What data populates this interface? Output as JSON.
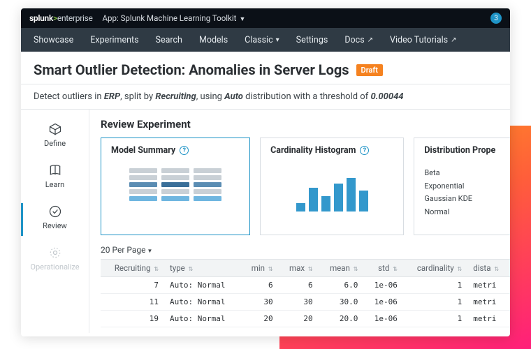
{
  "branding": {
    "prefix": "splunk",
    "sep": ">",
    "suffix": "enterprise"
  },
  "app": {
    "label": "App: Splunk Machine Learning Toolkit"
  },
  "notification_count": "3",
  "nav": [
    {
      "label": "Showcase"
    },
    {
      "label": "Experiments"
    },
    {
      "label": "Search"
    },
    {
      "label": "Models"
    },
    {
      "label": "Classic",
      "caret": true
    },
    {
      "label": "Settings"
    },
    {
      "label": "Docs",
      "ext": true
    },
    {
      "label": "Video Tutorials",
      "ext": true
    }
  ],
  "page": {
    "title": "Smart Outlier Detection: Anomalies in Server Logs",
    "badge": "Draft",
    "subtitle_parts": {
      "t0": "Detect outliers in ",
      "b0": "ERP",
      "t1": ", split by ",
      "b1": "Recruiting",
      "t2": ", using ",
      "b2": "Auto",
      "t3": " distribution with a threshold of ",
      "b3": "0.00044"
    }
  },
  "steps": [
    {
      "label": "Define"
    },
    {
      "label": "Learn"
    },
    {
      "label": "Review"
    },
    {
      "label": "Operationalize"
    }
  ],
  "section_title": "Review Experiment",
  "cards": {
    "model_summary": {
      "title": "Model Summary",
      "colors": {
        "grey": "#c9d0d6",
        "mid": "#5b8db3",
        "dark": "#3a6f99",
        "light": "#6fb6e0"
      },
      "grid": [
        [
          "grey",
          "grey",
          "grey"
        ],
        [
          "grey",
          "grey",
          "grey"
        ],
        [
          "mid",
          "dark",
          "mid"
        ],
        [
          "grey",
          "grey",
          "grey"
        ],
        [
          "light",
          "light",
          "light"
        ]
      ]
    },
    "cardinality": {
      "title": "Cardinality Histogram",
      "bar_color": "#3398cc",
      "heights": [
        12,
        34,
        22,
        40,
        48,
        30
      ]
    },
    "distribution": {
      "title": "Distribution Prope",
      "rows": [
        "Beta",
        "Exponential",
        "Gaussian KDE",
        "Normal"
      ]
    }
  },
  "pager": "20 Per Page",
  "table": {
    "columns": [
      "Recruiting",
      "type",
      "min",
      "max",
      "mean",
      "std",
      "cardinality",
      "dista"
    ],
    "rows": [
      [
        "7",
        "Auto: Normal",
        "6",
        "6",
        "6.0",
        "1e-06",
        "1",
        "metri"
      ],
      [
        "11",
        "Auto: Normal",
        "30",
        "30",
        "30.0",
        "1e-06",
        "1",
        "metri"
      ],
      [
        "19",
        "Auto: Normal",
        "20",
        "20",
        "20.0",
        "1e-06",
        "1",
        "metri"
      ]
    ]
  },
  "colors": {
    "accent": "#1e93c6",
    "draft": "#f58220"
  }
}
